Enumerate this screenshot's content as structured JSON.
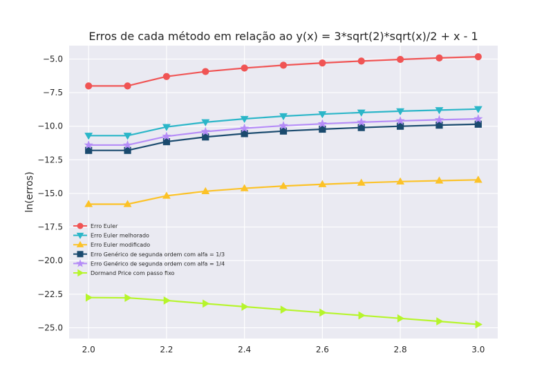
{
  "chart_data": {
    "type": "line",
    "title": "Erros de cada método em relação ao y(x) = 3*sqrt(2)*sqrt(x)/2 + x - 1",
    "xlabel": "",
    "ylabel": "ln(erros)",
    "xlim": [
      1.95,
      3.05
    ],
    "ylim": [
      -25.8,
      -4.0
    ],
    "xticks": [
      2.0,
      2.2,
      2.4,
      2.6,
      2.8,
      3.0
    ],
    "xtick_labels": [
      "2.0",
      "2.2",
      "2.4",
      "2.6",
      "2.8",
      "3.0"
    ],
    "yticks": [
      -5.0,
      -7.5,
      -10.0,
      -12.5,
      -15.0,
      -17.5,
      -20.0,
      -22.5,
      -25.0
    ],
    "ytick_labels": [
      "−5.0",
      "−7.5",
      "−10.0",
      "−12.5",
      "−15.0",
      "−17.5",
      "−20.0",
      "−22.5",
      "−25.0"
    ],
    "grid": true,
    "legend_position": "center-left",
    "x": [
      2.0,
      2.1,
      2.2,
      2.3,
      2.4,
      2.5,
      2.6,
      2.7,
      2.8,
      2.9,
      3.0
    ],
    "series": [
      {
        "name": "Erro Euler",
        "color": "#f05454",
        "marker": "circle",
        "values": [
          -7.0,
          -7.0,
          -6.3,
          -5.93,
          -5.67,
          -5.46,
          -5.29,
          -5.15,
          -5.03,
          -4.92,
          -4.83
        ]
      },
      {
        "name": "Erro Euler melhorado",
        "color": "#2bb6c8",
        "marker": "triangle-down",
        "values": [
          -10.7,
          -10.7,
          -10.05,
          -9.7,
          -9.45,
          -9.25,
          -9.1,
          -8.98,
          -8.88,
          -8.8,
          -8.72
        ]
      },
      {
        "name": "Erro Euler modificado",
        "color": "#fcc227",
        "marker": "triangle-up",
        "values": [
          -15.8,
          -15.8,
          -15.18,
          -14.84,
          -14.62,
          -14.45,
          -14.32,
          -14.21,
          -14.12,
          -14.05,
          -13.99
        ]
      },
      {
        "name": "Erro Genérico de segunda ordem com alfa = 1/3",
        "color": "#1a4a6e",
        "marker": "square",
        "values": [
          -11.8,
          -11.8,
          -11.15,
          -10.8,
          -10.55,
          -10.36,
          -10.22,
          -10.1,
          -10.0,
          -9.92,
          -9.85
        ]
      },
      {
        "name": "Erro Genérico de segunda ordem com alfa = 1/4",
        "color": "#b58cf7",
        "marker": "star",
        "values": [
          -11.4,
          -11.4,
          -10.75,
          -10.4,
          -10.15,
          -9.96,
          -9.82,
          -9.7,
          -9.6,
          -9.52,
          -9.45
        ]
      },
      {
        "name": "Dormand Price com passo fixo",
        "color": "#b6f52b",
        "marker": "triangle-right",
        "values": [
          -22.75,
          -22.77,
          -22.97,
          -23.2,
          -23.43,
          -23.65,
          -23.87,
          -24.08,
          -24.3,
          -24.52,
          -24.75
        ]
      }
    ]
  }
}
